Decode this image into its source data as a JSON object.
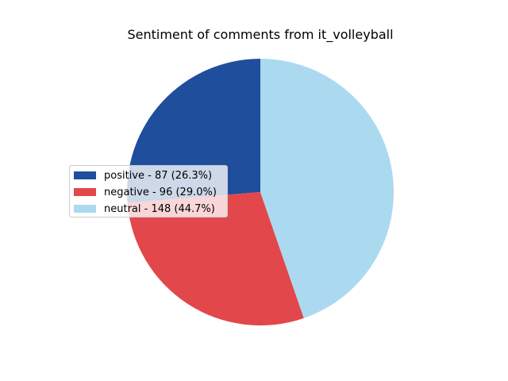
{
  "chart_data": {
    "type": "pie",
    "title": "Sentiment of comments from it_volleyball",
    "legend_position": "center-left",
    "start_angle_deg": 90,
    "direction": "counterclockwise",
    "slices": [
      {
        "label": "positive",
        "value": 87,
        "percent": 26.3,
        "color": "#1f4e9c",
        "legend_text": "positive - 87 (26.3%)"
      },
      {
        "label": "negative",
        "value": 96,
        "percent": 29.0,
        "color": "#e2474b",
        "legend_text": "negative - 96 (29.0%)"
      },
      {
        "label": "neutral",
        "value": 148,
        "percent": 44.7,
        "color": "#abd9f0",
        "legend_text": "neutral - 148 (44.7%)"
      }
    ]
  }
}
